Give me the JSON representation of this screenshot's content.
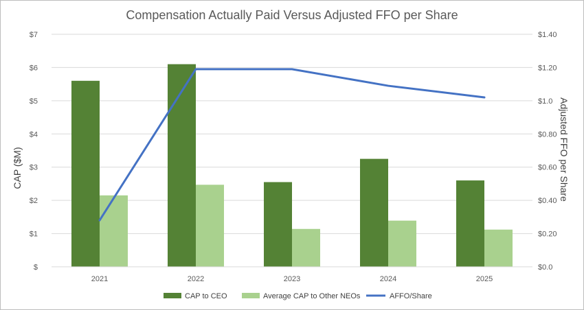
{
  "chart_data": {
    "type": "bar+line",
    "title": "Compensation Actually Paid Versus Adjusted FFO per Share",
    "categories": [
      "2021",
      "2022",
      "2023",
      "2024",
      "2025"
    ],
    "series": [
      {
        "name": "CAP to CEO",
        "type": "bar",
        "axis": "left",
        "values": [
          5.6,
          6.1,
          2.55,
          3.25,
          2.6
        ],
        "color": "#548235"
      },
      {
        "name": "Average CAP to Other NEOs",
        "type": "bar",
        "axis": "left",
        "values": [
          2.15,
          2.47,
          1.14,
          1.39,
          1.12
        ],
        "color": "#a9d18e"
      },
      {
        "name": "AFFO/Share",
        "type": "line",
        "axis": "right",
        "values": [
          0.28,
          1.19,
          1.19,
          1.09,
          1.02
        ],
        "color": "#4472c4"
      }
    ],
    "ylabel": "CAP ($M)",
    "y2label": "Adjusted FFO per Share",
    "ylim": [
      0,
      7
    ],
    "y2lim": [
      0,
      1.4
    ],
    "yticks": [
      "$",
      "$1",
      "$2",
      "$3",
      "$4",
      "$5",
      "$6",
      "$7"
    ],
    "y2ticks": [
      "$0.0",
      "$0.20",
      "$0.40",
      "$0.60",
      "$0.80",
      "$1.0",
      "$1.20",
      "$1.40"
    ],
    "grid": true,
    "legend_position": "bottom"
  }
}
